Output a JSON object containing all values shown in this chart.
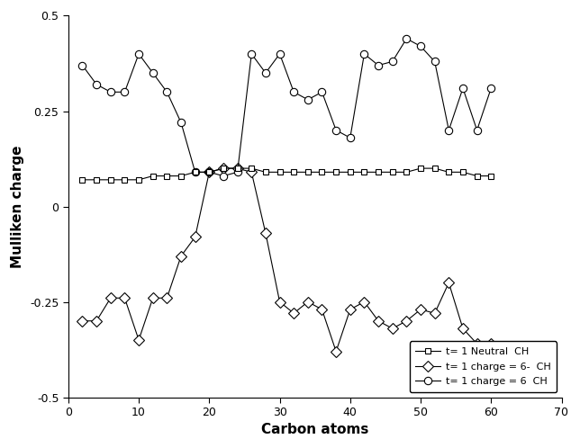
{
  "neutral_x": [
    2,
    4,
    6,
    8,
    10,
    12,
    14,
    16,
    18,
    20,
    22,
    24,
    26,
    28,
    30,
    32,
    34,
    36,
    38,
    40,
    42,
    44,
    46,
    48,
    50,
    52,
    54,
    56,
    58,
    60
  ],
  "neutral_y": [
    0.07,
    0.07,
    0.07,
    0.07,
    0.07,
    0.08,
    0.08,
    0.08,
    0.09,
    0.09,
    0.1,
    0.1,
    0.1,
    0.09,
    0.09,
    0.09,
    0.09,
    0.09,
    0.09,
    0.09,
    0.09,
    0.09,
    0.09,
    0.09,
    0.1,
    0.1,
    0.09,
    0.09,
    0.08,
    0.08
  ],
  "neg6_x": [
    2,
    4,
    6,
    8,
    10,
    12,
    14,
    16,
    18,
    20,
    22,
    24,
    26,
    28,
    30,
    32,
    34,
    36,
    38,
    40,
    42,
    44,
    46,
    48,
    50,
    52,
    54,
    56,
    58,
    60
  ],
  "neg6_y": [
    -0.3,
    -0.3,
    -0.24,
    -0.24,
    -0.35,
    -0.24,
    -0.24,
    -0.13,
    -0.08,
    0.09,
    0.1,
    0.1,
    0.09,
    -0.07,
    -0.25,
    -0.28,
    -0.25,
    -0.27,
    -0.38,
    -0.27,
    -0.25,
    -0.3,
    -0.32,
    -0.3,
    -0.27,
    -0.28,
    -0.2,
    -0.32,
    -0.36,
    -0.36
  ],
  "pos6_x": [
    2,
    4,
    6,
    8,
    10,
    12,
    14,
    16,
    18,
    20,
    22,
    24,
    26,
    28,
    30,
    32,
    34,
    36,
    38,
    40,
    42,
    44,
    46,
    48,
    50,
    52,
    54,
    56,
    58,
    60
  ],
  "pos6_y": [
    0.37,
    0.32,
    0.3,
    0.3,
    0.4,
    0.35,
    0.3,
    0.22,
    0.09,
    0.09,
    0.08,
    0.09,
    0.4,
    0.35,
    0.4,
    0.3,
    0.28,
    0.3,
    0.2,
    0.18,
    0.4,
    0.37,
    0.38,
    0.44,
    0.42,
    0.38,
    0.2,
    0.31,
    0.2,
    0.31
  ],
  "xlabel": "Carbon atoms",
  "ylabel": "Mulliken charge",
  "xlim": [
    0,
    70
  ],
  "ylim": [
    -0.5,
    0.5
  ],
  "xticks": [
    0,
    10,
    20,
    30,
    40,
    50,
    60,
    70
  ],
  "yticks": [
    -0.5,
    -0.25,
    0,
    0.25,
    0.5
  ],
  "legend_neutral": "t= 1 Neutral  CH",
  "legend_neg6": "t= 1 charge = 6-  CH",
  "legend_pos6": "t= 1 charge = 6  CH",
  "line_color": "black",
  "bg_color": "white"
}
